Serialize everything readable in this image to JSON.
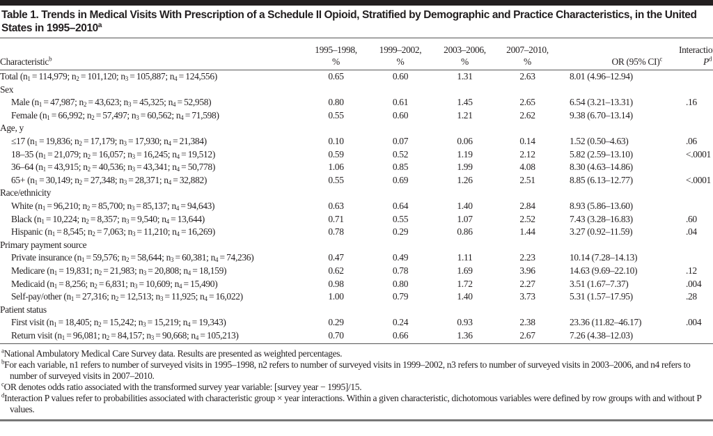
{
  "title": {
    "text": "Table 1. Trends in Medical Visits With Prescription of a Schedule II Opioid, Stratified by Demographic and Practice Characteristics, in the United States in 1995–2010",
    "sup": "a"
  },
  "header": {
    "characteristic": "Characteristic",
    "characteristic_sup": "b",
    "periods": [
      {
        "line1": "1995–1998,",
        "line2": "%"
      },
      {
        "line1": "1999–2002,",
        "line2": "%"
      },
      {
        "line1": "2003–2006,",
        "line2": "%"
      },
      {
        "line1": "2007–2010,",
        "line2": "%"
      }
    ],
    "or": "OR (95% CI)",
    "or_sup": "c",
    "interaction_line1": "Interaction",
    "interaction_p": "P",
    "interaction_sup": "d"
  },
  "rows": [
    {
      "type": "data",
      "name": "Total",
      "n": [
        "114,979",
        "101,120",
        "105,887",
        "124,556"
      ],
      "values": [
        "0.65",
        "0.60",
        "1.31",
        "2.63"
      ],
      "or": "8.01 (4.96–12.94)",
      "p": ""
    },
    {
      "type": "group",
      "name": "Sex"
    },
    {
      "type": "data",
      "indent": true,
      "name": "Male",
      "n": [
        "47,987",
        "43,623",
        "45,325",
        "52,958"
      ],
      "values": [
        "0.80",
        "0.61",
        "1.45",
        "2.65"
      ],
      "or": "6.54 (3.21–13.31)",
      "p": ".16"
    },
    {
      "type": "data",
      "indent": true,
      "name": "Female",
      "n": [
        "66,992",
        "57,497",
        "60,562",
        "71,598"
      ],
      "values": [
        "0.55",
        "0.60",
        "1.21",
        "2.62"
      ],
      "or": "9.38 (6.70–13.14)",
      "p": ""
    },
    {
      "type": "group",
      "name": "Age, y"
    },
    {
      "type": "data",
      "indent": true,
      "name": "≤17",
      "n": [
        "19,836",
        "17,179",
        "17,930",
        "21,384"
      ],
      "values": [
        "0.10",
        "0.07",
        "0.06",
        "0.14"
      ],
      "or": "1.52 (0.50–4.63)",
      "p": ".06"
    },
    {
      "type": "data",
      "indent": true,
      "name": "18–35",
      "n": [
        "21,079",
        "16,057",
        "16,245",
        "19,512"
      ],
      "values": [
        "0.59",
        "0.52",
        "1.19",
        "2.12"
      ],
      "or": "5.82 (2.59–13.10)",
      "p": "<.0001"
    },
    {
      "type": "data",
      "indent": true,
      "name": "36–64",
      "n": [
        "43,915",
        "40,536",
        "43,341",
        "50,778"
      ],
      "values": [
        "1.06",
        "0.85",
        "1.99",
        "4.08"
      ],
      "or": "8.30 (4.63–14.86)",
      "p": ""
    },
    {
      "type": "data",
      "indent": true,
      "name": "65+",
      "n": [
        "30,149",
        "27,348",
        "28,371",
        "32,882"
      ],
      "values": [
        "0.55",
        "0.69",
        "1.26",
        "2.51"
      ],
      "or": "8.85 (6.13–12.77)",
      "p": "<.0001"
    },
    {
      "type": "group",
      "name": "Race/ethnicity"
    },
    {
      "type": "data",
      "indent": true,
      "name": "White",
      "n": [
        "96,210",
        "85,700",
        "85,137",
        "94,643"
      ],
      "values": [
        "0.63",
        "0.64",
        "1.40",
        "2.84"
      ],
      "or": "8.93 (5.86–13.60)",
      "p": ""
    },
    {
      "type": "data",
      "indent": true,
      "name": "Black",
      "n": [
        "10,224",
        "8,357",
        "9,540",
        "13,644"
      ],
      "values": [
        "0.71",
        "0.55",
        "1.07",
        "2.52"
      ],
      "or": "7.43 (3.28–16.83)",
      "p": ".60"
    },
    {
      "type": "data",
      "indent": true,
      "name": "Hispanic",
      "n": [
        "8,545",
        "7,063",
        "11,210",
        "16,269"
      ],
      "values": [
        "0.78",
        "0.29",
        "0.86",
        "1.44"
      ],
      "or": "3.27 (0.92–11.59)",
      "p": ".04"
    },
    {
      "type": "group",
      "name": "Primary payment source"
    },
    {
      "type": "data",
      "indent": true,
      "name": "Private insurance",
      "n": [
        "59,576",
        "58,644",
        "60,381",
        "74,236"
      ],
      "values": [
        "0.47",
        "0.49",
        "1.11",
        "2.23"
      ],
      "or": "10.14 (7.28–14.13)",
      "p": ""
    },
    {
      "type": "data",
      "indent": true,
      "name": "Medicare",
      "n": [
        "19,831",
        "21,983",
        "20,808",
        "18,159"
      ],
      "values": [
        "0.62",
        "0.78",
        "1.69",
        "3.96"
      ],
      "or": "14.63 (9.69–22.10)",
      "p": ".12"
    },
    {
      "type": "data",
      "indent": true,
      "name": "Medicaid",
      "n": [
        "8,256",
        "6,831",
        "10,609",
        "15,490"
      ],
      "values": [
        "0.98",
        "0.80",
        "1.72",
        "2.27"
      ],
      "or": "3.51 (1.67–7.37)",
      "p": ".004"
    },
    {
      "type": "data",
      "indent": true,
      "name": "Self-pay/other",
      "n": [
        "27,316",
        "12,513",
        "11,925",
        "16,022"
      ],
      "values": [
        "1.00",
        "0.79",
        "1.40",
        "3.73"
      ],
      "or": "5.31 (1.57–17.95)",
      "p": ".28"
    },
    {
      "type": "group",
      "name": "Patient status"
    },
    {
      "type": "data",
      "indent": true,
      "name": "First visit",
      "n": [
        "18,405",
        "15,242",
        "15,219",
        "19,343"
      ],
      "values": [
        "0.29",
        "0.24",
        "0.93",
        "2.38"
      ],
      "or": "23.36 (11.82–46.17)",
      "p": ".004"
    },
    {
      "type": "data",
      "indent": true,
      "name": "Return visit",
      "n": [
        "96,081",
        "84,157",
        "90,668",
        "105,213"
      ],
      "values": [
        "0.70",
        "0.66",
        "1.36",
        "2.67"
      ],
      "or": "7.26 (4.38–12.03)",
      "p": ""
    }
  ],
  "footnotes": [
    {
      "mark": "a",
      "text": "National Ambulatory Medical Care Survey data. Results are presented as weighted percentages."
    },
    {
      "mark": "b",
      "text": "For each variable, n1 refers to number of surveyed visits in 1995–1998, n2 refers to number of surveyed visits in 1999–2002, n3 refers to number of surveyed visits in 2003–2006, and n4 refers to number of surveyed visits in 2007–2010."
    },
    {
      "mark": "c",
      "text": "OR denotes odds ratio associated with the transformed survey year variable: [survey year − 1995]/15."
    },
    {
      "mark": "d",
      "text": "Interaction P values refer to probabilities associated with characteristic group × year interactions. Within a given characteristic, dichotomous variables were defined by row groups with and without P values."
    }
  ]
}
